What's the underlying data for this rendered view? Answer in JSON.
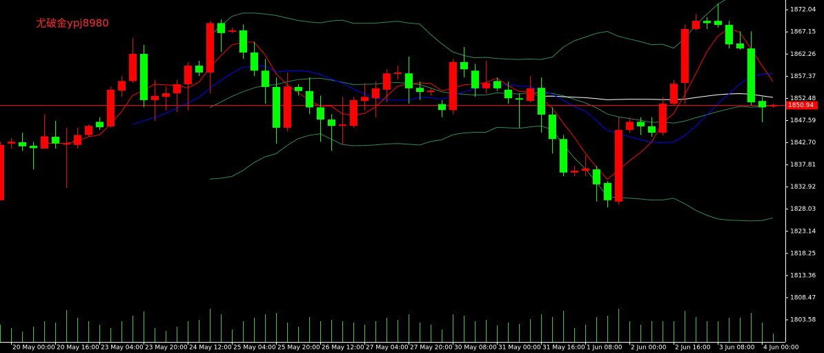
{
  "chart_data": {
    "type": "candlestick",
    "watermark": "尤破金ypj8980",
    "categories": [
      null,
      "20 May 00:00",
      null,
      null,
      null,
      "20 May 16:00",
      null,
      null,
      null,
      "23 May 04:00",
      null,
      null,
      null,
      "23 May 20:00",
      null,
      null,
      null,
      "24 May 12:00",
      null,
      null,
      null,
      "25 May 04:00",
      null,
      null,
      null,
      "25 May 20:00",
      null,
      null,
      null,
      "26 May 12:00",
      null,
      null,
      null,
      "27 May 04:00",
      null,
      null,
      null,
      "27 May 20:00",
      null,
      null,
      null,
      "30 May 08:00",
      null,
      null,
      null,
      "31 May 00:00",
      null,
      null,
      null,
      "31 May 16:00",
      null,
      null,
      null,
      "1 Jun 08:00",
      null,
      null,
      null,
      "2 Jun 00:00",
      null,
      null,
      null,
      "2 Jun 16:00",
      null,
      null,
      null,
      "3 Jun 08:00",
      null,
      null,
      null,
      "4 Jun 00:00",
      null
    ],
    "open": [
      1830.0,
      1842.5,
      1842.8,
      1842.0,
      1841.4,
      1844.0,
      1842.3,
      1842.2,
      1844.4,
      1847.3,
      1846.3,
      1854.2,
      1856.3,
      1862.3,
      1852.1,
      1852.8,
      1853.6,
      1855.6,
      1859.7,
      1858.2,
      1869.1,
      1867.2,
      1867.5,
      1862.6,
      1858.6,
      1855.0,
      1846.0,
      1855.0,
      1854.1,
      1850.5,
      1847.8,
      1846.4,
      1846.4,
      1851.9,
      1852.5,
      1854.4,
      1857.9,
      1858.0,
      1854.8,
      1853.9,
      1851.2,
      1849.9,
      1860.5,
      1858.6,
      1854.7,
      1856.3,
      1854.4,
      1852.5,
      1851.9,
      1854.8,
      1848.9,
      1843.5,
      1836.1,
      1836.5,
      1836.8,
      1833.8,
      1829.7,
      1845.5,
      1847.3,
      1846.3,
      1844.9,
      1851.3,
      1855.9,
      1867.8,
      1869.6,
      1869.6,
      1868.7,
      1864.6,
      1863.5,
      1851.9,
      1850.7
    ],
    "high": [
      1842.9,
      1843.7,
      1844.9,
      1842.9,
      1849.0,
      1847.5,
      1846.0,
      1846.0,
      1846.7,
      1848.3,
      1855.1,
      1857.4,
      1865.8,
      1864.3,
      1856.6,
      1855.1,
      1856.6,
      1860.5,
      1860.8,
      1869.6,
      1869.9,
      1868.1,
      1868.8,
      1865.0,
      1861.2,
      1857.1,
      1858.2,
      1855.6,
      1857.1,
      1853.1,
      1849.0,
      1852.8,
      1852.8,
      1855.9,
      1856.2,
      1858.9,
      1859.7,
      1861.7,
      1856.2,
      1854.7,
      1852.1,
      1861.2,
      1863.8,
      1860.1,
      1860.8,
      1857.1,
      1856.2,
      1853.6,
      1857.4,
      1857.1,
      1850.5,
      1844.4,
      1837.6,
      1839.9,
      1837.6,
      1834.2,
      1848.3,
      1848.3,
      1848.3,
      1848.3,
      1852.8,
      1856.6,
      1868.8,
      1871.1,
      1870.4,
      1873.4,
      1869.6,
      1867.3,
      1867.3,
      1852.8,
      1851.3
    ],
    "low": [
      1830.0,
      1841.4,
      1840.9,
      1836.8,
      1841.4,
      1841.4,
      1832.7,
      1841.4,
      1844.0,
      1845.5,
      1846.0,
      1852.8,
      1855.9,
      1850.5,
      1847.5,
      1849.8,
      1849.5,
      1849.8,
      1857.4,
      1853.6,
      1862.7,
      1866.9,
      1861.2,
      1857.4,
      1851.3,
      1842.5,
      1845.2,
      1853.1,
      1849.0,
      1842.9,
      1840.9,
      1842.2,
      1846.0,
      1849.8,
      1848.3,
      1851.6,
      1856.6,
      1851.3,
      1852.1,
      1853.1,
      1848.3,
      1849.0,
      1857.1,
      1852.8,
      1853.6,
      1854.1,
      1851.3,
      1846.0,
      1851.6,
      1844.9,
      1840.3,
      1835.3,
      1835.3,
      1835.3,
      1829.7,
      1828.4,
      1829.0,
      1844.9,
      1844.4,
      1844.0,
      1844.3,
      1851.0,
      1851.3,
      1867.5,
      1867.8,
      1868.1,
      1863.5,
      1863.2,
      1851.0,
      1847.2,
      1850.4
    ],
    "close": [
      1842.2,
      1842.9,
      1841.9,
      1841.5,
      1844.1,
      1842.5,
      1842.6,
      1844.4,
      1846.4,
      1846.1,
      1854.4,
      1856.3,
      1862.3,
      1852.1,
      1853.0,
      1853.6,
      1855.6,
      1859.7,
      1858.2,
      1869.1,
      1866.9,
      1867.5,
      1862.6,
      1858.6,
      1855.0,
      1846.0,
      1855.1,
      1854.1,
      1850.5,
      1847.8,
      1846.4,
      1846.7,
      1852.1,
      1852.8,
      1854.7,
      1858.0,
      1858.2,
      1854.7,
      1853.9,
      1854.2,
      1849.9,
      1860.5,
      1858.9,
      1854.7,
      1855.9,
      1854.7,
      1852.5,
      1852.2,
      1854.7,
      1848.9,
      1843.5,
      1836.1,
      1836.5,
      1837.0,
      1833.5,
      1830.0,
      1845.5,
      1847.3,
      1846.3,
      1844.9,
      1851.3,
      1855.7,
      1867.8,
      1869.6,
      1869.1,
      1868.7,
      1864.4,
      1863.5,
      1851.6,
      1850.5,
      1851.0
    ],
    "volume": [
      25,
      20,
      15,
      22,
      30,
      28,
      46,
      35,
      30,
      25,
      20,
      30,
      38,
      44,
      20,
      16,
      22,
      30,
      32,
      48,
      40,
      18,
      30,
      35,
      40,
      42,
      28,
      22,
      36,
      30,
      32,
      30,
      28,
      25,
      30,
      35,
      32,
      40,
      28,
      25,
      18,
      40,
      38,
      30,
      32,
      24,
      28,
      26,
      33,
      40,
      36,
      45,
      20,
      25,
      36,
      38,
      48,
      30,
      25,
      30,
      30,
      30,
      45,
      36,
      30,
      30,
      35,
      35,
      42,
      28,
      12
    ],
    "up_color": "#ff0000",
    "down_color": "#00ff00",
    "volume_color": "#32cd32",
    "ma_colors": [
      "#ff0000",
      "#0000ff",
      "#ffffff"
    ],
    "band_color": "#2e8b57",
    "last_price": 1850.94,
    "ylim": [
      1798.7,
      1874.2
    ],
    "vlim": [
      0,
      60
    ],
    "yticks": [
      1872.04,
      1867.15,
      1862.26,
      1857.37,
      1852.48,
      1847.59,
      {
        "value": 1842.7,
        "label": "1842.70"
      },
      1837.81,
      1832.92,
      1828.03,
      1823.14,
      1818.25,
      1813.36,
      1808.47,
      1803.58
    ]
  }
}
